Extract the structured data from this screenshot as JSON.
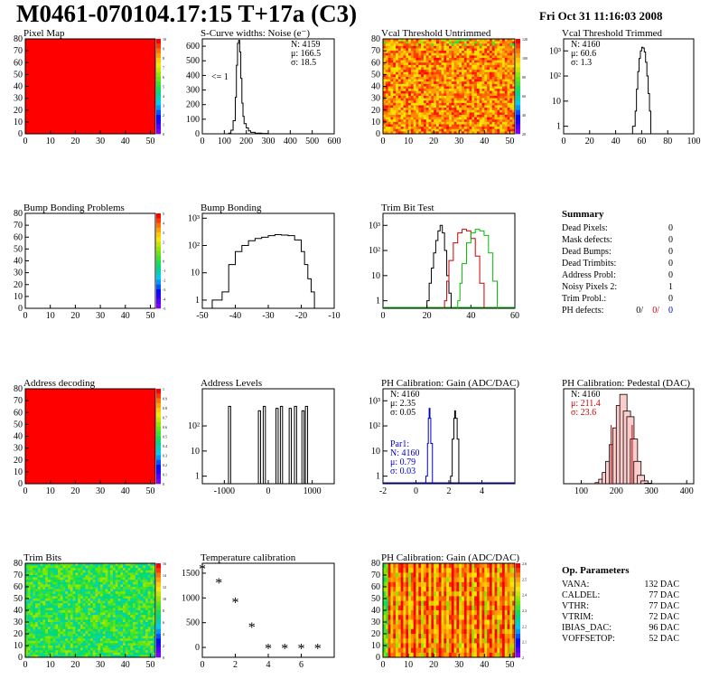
{
  "header": {
    "title": "M0461-070104.17:15 T+17a (C3)",
    "timestamp": "Fri Oct 31 11:16:03 2008"
  },
  "colors": {
    "red": "#ff0000",
    "green_map": "#55dd33",
    "black": "#000000",
    "trim_red": "#cc0000",
    "trim_green": "#00bb00",
    "param_blue": "#0000cc"
  },
  "chart_data": [
    {
      "id": "pixel-map",
      "type": "heatmap",
      "title": "Pixel Map",
      "xlim": [
        0,
        52
      ],
      "ylim": [
        0,
        80
      ],
      "xticks": [
        "0",
        "10",
        "20",
        "30",
        "40",
        "50"
      ],
      "yticks": [
        "0",
        "10",
        "20",
        "30",
        "40",
        "50",
        "60",
        "70",
        "80"
      ],
      "fill": "uniform",
      "value": 10,
      "zticks": [
        "10",
        "9",
        "8",
        "7",
        "6",
        "5",
        "4",
        "3",
        "2",
        "1",
        "0"
      ]
    },
    {
      "id": "scurve-noise",
      "type": "line",
      "title": "S-Curve widths: Noise (e⁻)",
      "xlim": [
        0,
        600
      ],
      "ylim": [
        0,
        650
      ],
      "xticks": [
        "0",
        "100",
        "200",
        "300",
        "400",
        "500",
        "600"
      ],
      "yticks": [
        "0",
        "100",
        "200",
        "300",
        "400",
        "500",
        "600"
      ],
      "x": [
        100,
        120,
        130,
        140,
        150,
        155,
        160,
        165,
        170,
        175,
        180,
        185,
        190,
        200,
        210,
        220,
        240,
        270,
        300
      ],
      "y": [
        0,
        5,
        25,
        90,
        250,
        470,
        620,
        640,
        560,
        380,
        210,
        120,
        70,
        40,
        20,
        10,
        5,
        2,
        0
      ],
      "stats": [
        "N: 4159",
        "μ: 166.5",
        "σ: 18.5"
      ],
      "annotation": "<= 1"
    },
    {
      "id": "vcal-untrimmed",
      "type": "heatmap",
      "title": "Vcal Threshold Untrimmed",
      "xlim": [
        0,
        52
      ],
      "ylim": [
        0,
        80
      ],
      "xticks": [
        "0",
        "10",
        "20",
        "30",
        "40",
        "50"
      ],
      "yticks": [
        "0",
        "10",
        "20",
        "30",
        "40",
        "50",
        "60",
        "70",
        "80"
      ],
      "fill": "noise-warm",
      "zticks": [
        "120",
        "100",
        "80",
        "60",
        "40",
        "20"
      ]
    },
    {
      "id": "vcal-trimmed",
      "type": "line",
      "title": "Vcal Threshold Trimmed",
      "xlim": [
        0,
        100
      ],
      "ylog": true,
      "ylim": [
        0.5,
        3000
      ],
      "xticks": [
        "0",
        "20",
        "40",
        "60",
        "80",
        "100"
      ],
      "yticks": [
        "1",
        "10",
        "10²",
        "10³"
      ],
      "x": [
        53,
        55,
        56,
        57,
        58,
        59,
        60,
        61,
        62,
        63,
        64,
        65,
        66,
        67
      ],
      "y": [
        1,
        4,
        30,
        150,
        500,
        1000,
        1400,
        1300,
        900,
        350,
        100,
        20,
        4,
        1
      ],
      "stats": [
        "N: 4160",
        "μ: 60.6",
        "σ:  1.3"
      ]
    },
    {
      "id": "bump-bonding-problems",
      "type": "heatmap",
      "title": "Bump Bonding Problems",
      "xlim": [
        0,
        52
      ],
      "ylim": [
        0,
        80
      ],
      "xticks": [
        "0",
        "10",
        "20",
        "30",
        "40",
        "50"
      ],
      "yticks": [
        "0",
        "10",
        "20",
        "30",
        "40",
        "50",
        "60",
        "70",
        "80"
      ],
      "fill": "empty",
      "zticks": [
        "5",
        "4",
        "3",
        "2",
        "1",
        "0",
        "-1",
        "-2",
        "-3",
        "-4",
        "-5"
      ]
    },
    {
      "id": "bump-bonding",
      "type": "line",
      "title": "Bump Bonding",
      "xlim": [
        -50,
        -10
      ],
      "ylog": true,
      "ylim": [
        0.5,
        1500
      ],
      "xticks": [
        "-50",
        "-40",
        "-30",
        "-20",
        "-10"
      ],
      "yticks": [
        "1",
        "10",
        "10²",
        "10³"
      ],
      "x": [
        -47,
        -46,
        -45,
        -44,
        -42,
        -40,
        -38,
        -36,
        -34,
        -32,
        -30,
        -28,
        -26,
        -24,
        -22,
        -20,
        -19,
        -18,
        -17,
        -16
      ],
      "y": [
        1,
        1,
        1,
        2,
        20,
        60,
        100,
        150,
        180,
        200,
        230,
        250,
        240,
        230,
        160,
        60,
        20,
        6,
        2,
        1
      ]
    },
    {
      "id": "trim-bit-test",
      "type": "line",
      "title": "Trim Bit Test",
      "xlim": [
        0,
        60
      ],
      "ylog": true,
      "ylim": [
        0.5,
        3000
      ],
      "xticks": [
        "0",
        "20",
        "40",
        "60"
      ],
      "yticks": [
        "1",
        "10",
        "10²",
        "10³"
      ],
      "series": [
        {
          "x": [
            20,
            21,
            22,
            23,
            24,
            25,
            26,
            27,
            28,
            29,
            30,
            31
          ],
          "y": [
            1,
            5,
            20,
            80,
            250,
            600,
            1000,
            500,
            100,
            10,
            2,
            1
          ]
        },
        {
          "x": [
            28,
            29,
            30,
            32,
            34,
            36,
            38,
            40,
            42,
            44,
            46
          ],
          "y": [
            1,
            6,
            40,
            200,
            500,
            700,
            600,
            300,
            60,
            5,
            1
          ]
        },
        {
          "x": [
            34,
            35,
            36,
            38,
            40,
            42,
            44,
            46,
            48,
            50,
            52
          ],
          "y": [
            1,
            5,
            30,
            200,
            500,
            700,
            600,
            400,
            80,
            6,
            1
          ]
        }
      ]
    },
    {
      "id": "address-decoding",
      "type": "heatmap",
      "title": "Address decoding",
      "xlim": [
        0,
        52
      ],
      "ylim": [
        0,
        80
      ],
      "xticks": [
        "0",
        "10",
        "20",
        "30",
        "40",
        "50"
      ],
      "yticks": [
        "0",
        "10",
        "20",
        "30",
        "40",
        "50",
        "60",
        "70",
        "80"
      ],
      "fill": "uniform",
      "value": 1,
      "zticks": [
        "1",
        "0.9",
        "0.8",
        "0.7",
        "0.6",
        "0.5",
        "0.4",
        "0.3",
        "0.2",
        "0.1",
        "0"
      ]
    },
    {
      "id": "address-levels",
      "type": "bar",
      "title": "Address Levels",
      "xlim": [
        -1500,
        1500
      ],
      "ylog": true,
      "ylim": [
        0.5,
        3000
      ],
      "xticks": [
        "-1000",
        "0",
        "1000"
      ],
      "yticks": [
        "1",
        "10",
        "10²"
      ],
      "x": [
        -880,
        -200,
        -90,
        200,
        300,
        500,
        620,
        790,
        870
      ],
      "y": [
        600,
        400,
        600,
        500,
        600,
        500,
        600,
        400,
        600
      ]
    },
    {
      "id": "ph-gain",
      "type": "line",
      "title": "PH Calibration: Gain (ADC/DAC)",
      "xlim": [
        -2,
        6
      ],
      "ylog": true,
      "ylim": [
        0.5,
        3000
      ],
      "xticks": [
        "-2",
        "0",
        "2",
        "4"
      ],
      "yticks": [
        "1",
        "10",
        "10²",
        "10³"
      ],
      "series": [
        {
          "x": [
            0.6,
            0.7,
            0.75,
            0.8,
            0.85,
            0.9,
            1.0
          ],
          "y": [
            1,
            20,
            200,
            500,
            200,
            20,
            1
          ]
        },
        {
          "x": [
            2.1,
            2.2,
            2.3,
            2.35,
            2.4,
            2.5,
            2.6
          ],
          "y": [
            1,
            30,
            200,
            400,
            200,
            30,
            1
          ]
        }
      ],
      "stats": [
        "N: 4160",
        "μ: 2.35",
        "σ: 0.05"
      ],
      "stats2": [
        "Par1:",
        "N: 4160",
        "μ: 0.79",
        "σ: 0.03"
      ]
    },
    {
      "id": "ph-pedestal",
      "type": "bar",
      "title": "PH Calibration: Pedestal (DAC)",
      "xlim": [
        50,
        420
      ],
      "ylim": [
        0,
        170
      ],
      "xticks": [
        "100",
        "200",
        "300",
        "400"
      ],
      "x": [
        150,
        160,
        170,
        180,
        190,
        200,
        210,
        220,
        230,
        240,
        250,
        260,
        270,
        280,
        290
      ],
      "y": [
        2,
        8,
        20,
        40,
        70,
        100,
        140,
        160,
        130,
        120,
        80,
        40,
        15,
        5,
        1
      ],
      "stats": [
        "N: 4160",
        "μ: 211.4",
        "σ: 23.6"
      ]
    },
    {
      "id": "trim-bits",
      "type": "heatmap",
      "title": "Trim Bits",
      "xlim": [
        0,
        52
      ],
      "ylim": [
        0,
        80
      ],
      "xticks": [
        "0",
        "10",
        "20",
        "30",
        "40",
        "50"
      ],
      "yticks": [
        "0",
        "10",
        "20",
        "30",
        "40",
        "50",
        "60",
        "70",
        "80"
      ],
      "fill": "noise-green",
      "zticks": [
        "16",
        "14",
        "12",
        "10",
        "8",
        "6",
        "4",
        "2",
        "0"
      ]
    },
    {
      "id": "temperature-calibration",
      "type": "scatter",
      "title": "Temperature calibration",
      "xlim": [
        0,
        8
      ],
      "ylim": [
        -200,
        1700
      ],
      "xticks": [
        "0",
        "2",
        "4",
        "6"
      ],
      "yticks": [
        "0",
        "500",
        "1000",
        "1500"
      ],
      "x": [
        0,
        1,
        2,
        3,
        4,
        5,
        6,
        7
      ],
      "y": [
        1600,
        1320,
        920,
        420,
        -10,
        -10,
        -10,
        -10
      ]
    },
    {
      "id": "ph-gain-map",
      "type": "heatmap",
      "title": "PH Calibration: Gain (ADC/DAC)",
      "xlim": [
        0,
        52
      ],
      "ylim": [
        0,
        80
      ],
      "xticks": [
        "0",
        "10",
        "20",
        "30",
        "40",
        "50"
      ],
      "yticks": [
        "0",
        "10",
        "20",
        "30",
        "40",
        "50",
        "60",
        "70",
        "80"
      ],
      "fill": "column-stripes",
      "zticks": [
        "2.6",
        "2.5",
        "2.4",
        "2.3",
        "2.2",
        "2.1",
        "2"
      ]
    }
  ],
  "summary": {
    "title": "Summary",
    "rows": [
      {
        "label": "Dead Pixels:",
        "value": "0"
      },
      {
        "label": "Mask defects:",
        "value": "0"
      },
      {
        "label": "Dead Bumps:",
        "value": "0"
      },
      {
        "label": "Dead Trimbits:",
        "value": "0"
      },
      {
        "label": "Address Probl:",
        "value": "0"
      },
      {
        "label": "Noisy Pixels 2:",
        "value": "1"
      },
      {
        "label": "Trim Probl.:",
        "value": "0"
      }
    ],
    "ph_defects": {
      "label": "PH defects:",
      "v1": "0/",
      "v2": "0/",
      "v3": "0"
    }
  },
  "op_params": {
    "title": "Op. Parameters",
    "rows": [
      {
        "label": "VANA:",
        "value": "132 DAC"
      },
      {
        "label": "CALDEL:",
        "value": "77 DAC"
      },
      {
        "label": "VTHR:",
        "value": "77 DAC"
      },
      {
        "label": "VTRIM:",
        "value": "72 DAC"
      },
      {
        "label": "IBIAS_DAC:",
        "value": "96 DAC"
      },
      {
        "label": "VOFFSETOP:",
        "value": "52 DAC"
      }
    ]
  }
}
